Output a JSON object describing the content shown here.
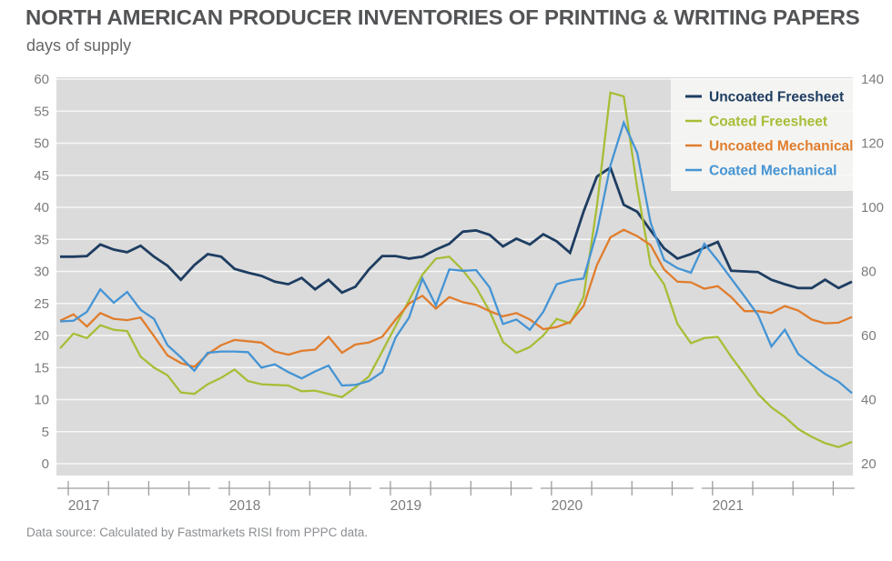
{
  "header": {
    "title": "NORTH AMERICAN PRODUCER INVENTORIES OF PRINTING & WRITING PAPERS",
    "subtitle": "days of supply"
  },
  "footer": {
    "source": "Data source: Calculated by Fastmarkets RISI from PPPC data."
  },
  "chart_data": {
    "type": "line",
    "title": "NORTH AMERICAN PRODUCER INVENTORIES OF PRINTING & WRITING PAPERS",
    "ylabel": "days of supply",
    "x_unit": "month",
    "x_start": "2017-01",
    "x_end": "2021-12",
    "years": [
      "2017",
      "2018",
      "2019",
      "2020",
      "2021"
    ],
    "grid": true,
    "plot_background": "#dbdbdb",
    "gridline_color": "#f7f7f6",
    "axis_text_color": "#7b7c7e",
    "axis_line_color": "#9c9da0",
    "left_axis": {
      "min": 0,
      "max": 60,
      "step": 5,
      "ticks": [
        0,
        5,
        10,
        15,
        20,
        25,
        30,
        35,
        40,
        45,
        50,
        55,
        60
      ]
    },
    "right_axis": {
      "min": 20,
      "max": 140,
      "step": 20,
      "ticks": [
        20,
        40,
        60,
        80,
        100,
        120,
        140
      ]
    },
    "legend_position": "top-right",
    "series": [
      {
        "name": "Uncoated Freesheet",
        "color": "#1e3d61",
        "values": [
          32.3,
          32.3,
          32.4,
          34.2,
          33.4,
          33.0,
          34.0,
          32.3,
          30.9,
          28.7,
          31.0,
          32.7,
          32.3,
          30.4,
          29.8,
          29.3,
          28.4,
          28.0,
          29.0,
          27.2,
          28.7,
          26.7,
          27.6,
          30.3,
          32.4,
          32.4,
          32.0,
          32.3,
          33.4,
          34.3,
          36.2,
          36.4,
          35.7,
          33.9,
          35.1,
          34.2,
          35.8,
          34.7,
          32.9,
          39.3,
          44.8,
          46.2,
          40.4,
          39.3,
          36.4,
          33.6,
          32.0,
          32.7,
          33.7,
          34.6,
          30.1,
          30.0,
          29.9,
          28.7,
          28.0,
          27.4,
          27.4,
          28.7,
          27.4,
          28.4
        ]
      },
      {
        "name": "Coated Freesheet",
        "color": "#a8bd37",
        "values": [
          18.0,
          20.3,
          19.6,
          21.6,
          20.9,
          20.7,
          16.7,
          15.0,
          13.8,
          11.1,
          10.9,
          12.4,
          13.4,
          14.7,
          12.9,
          12.4,
          12.3,
          12.2,
          11.3,
          11.4,
          10.9,
          10.4,
          11.9,
          13.6,
          17.5,
          21.5,
          25.5,
          29.5,
          32.0,
          32.3,
          30.2,
          27.5,
          23.8,
          19.0,
          17.3,
          18.2,
          20.0,
          22.6,
          21.9,
          26.0,
          40.2,
          57.9,
          57.3,
          43.0,
          31.0,
          28.0,
          21.8,
          18.8,
          19.6,
          19.8,
          16.7,
          13.9,
          10.9,
          8.8,
          7.3,
          5.4,
          4.2,
          3.2,
          2.6,
          3.4
        ]
      },
      {
        "name": "Uncoated Mechanical",
        "color": "#e07d2d",
        "values": [
          22.3,
          23.3,
          21.4,
          23.5,
          22.6,
          22.4,
          22.8,
          19.9,
          16.9,
          15.7,
          15.1,
          17.1,
          18.5,
          19.3,
          19.1,
          18.9,
          17.5,
          17.0,
          17.6,
          17.8,
          19.8,
          17.3,
          18.6,
          18.9,
          19.8,
          22.5,
          25.0,
          26.2,
          24.2,
          26.0,
          25.2,
          24.8,
          23.8,
          23.0,
          23.5,
          22.5,
          21.0,
          21.3,
          22.1,
          24.6,
          31.0,
          35.3,
          36.5,
          35.5,
          34.1,
          30.3,
          28.4,
          28.3,
          27.3,
          27.7,
          26.0,
          23.8,
          23.8,
          23.5,
          24.6,
          23.9,
          22.5,
          21.9,
          22.0,
          22.9
        ]
      },
      {
        "name": "Coated Mechanical",
        "color": "#4594d4",
        "values": [
          22.2,
          22.3,
          23.7,
          27.2,
          25.1,
          26.8,
          24.0,
          22.6,
          18.5,
          16.6,
          14.5,
          17.3,
          17.5,
          17.5,
          17.4,
          15.0,
          15.5,
          14.3,
          13.3,
          14.4,
          15.3,
          12.2,
          12.3,
          12.9,
          14.3,
          19.7,
          22.8,
          28.9,
          24.7,
          30.3,
          30.1,
          30.2,
          27.5,
          21.8,
          22.5,
          20.9,
          23.7,
          28.0,
          28.6,
          28.9,
          36.2,
          46.5,
          53.2,
          48.5,
          37.6,
          31.8,
          30.5,
          29.8,
          34.3,
          31.7,
          28.9,
          26.1,
          23.2,
          18.3,
          20.9,
          17.1,
          15.5,
          14.0,
          12.8,
          11.0
        ]
      }
    ]
  }
}
